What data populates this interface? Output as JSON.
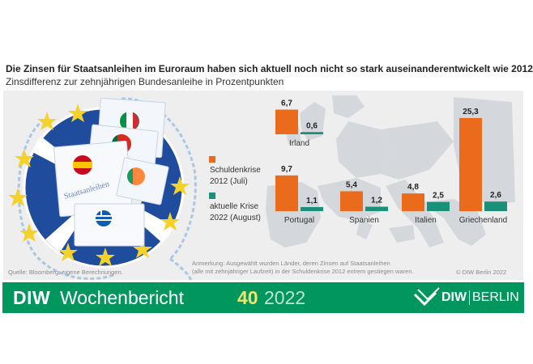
{
  "header": {
    "title": "Die Zinsen für Staatsanleihen im Euroraum haben sich aktuell noch nicht so stark auseinanderentwickelt wie 2012",
    "subtitle": "Zinsdifferenz zur zehnjährigen Bundesanleihe in Prozentpunkten"
  },
  "illustration": {
    "sheet_label": "Staatsanleihen"
  },
  "legend": {
    "series1_line1": "Schuldenkrise",
    "series1_line2": "2012 (Juli)",
    "series2_line1": "aktuelle Krise",
    "series2_line2": "2022 (August)"
  },
  "chart_data": {
    "type": "bar",
    "categories": [
      "Irland",
      "Portugal",
      "Spanien",
      "Italien",
      "Griechenland"
    ],
    "series": [
      {
        "name": "Schuldenkrise 2012 (Juli)",
        "values": [
          6.7,
          9.7,
          5.4,
          4.8,
          25.3
        ],
        "labels": [
          "6,7",
          "9,7",
          "5,4",
          "4,8",
          "25,3"
        ],
        "color": "#ea6b1b"
      },
      {
        "name": "aktuelle Krise 2022 (August)",
        "values": [
          0.6,
          1.1,
          1.2,
          2.5,
          2.6
        ],
        "labels": [
          "0,6",
          "1,1",
          "1,2",
          "2,5",
          "2,6"
        ],
        "color": "#1a9079"
      }
    ],
    "title": "Die Zinsen für Staatsanleihen im Euroraum haben sich aktuell noch nicht so stark auseinanderentwickelt wie 2012",
    "subtitle": "Zinsdifferenz zur zehnjährigen Bundesanleihe in Prozentpunkten",
    "xlabel": "",
    "ylabel": ""
  },
  "footer": {
    "source": "Quelle: Bloomberg; eigene Berechnungen.",
    "note_line1": "Anmerkung: Ausgewählt wurden Länder, deren Zinsen auf Staatsanleihen",
    "note_line2": "(alle mit zehnjähriger Laufzeit) in der Schuldenkrise 2012 extrem gestiegen waren.",
    "copyright": "© DIW Berlin 2022"
  },
  "banner": {
    "brand": "DIW",
    "publication": "Wochenbericht",
    "issue": "40",
    "year": "2022",
    "logo_brand": "DIW",
    "logo_city": "BERLIN"
  },
  "colors": {
    "banner_green": "#00965e",
    "orange": "#ea6b1b",
    "teal": "#1a9079",
    "eu_blue": "#1f4c9c",
    "eu_star": "#f4d22a"
  }
}
